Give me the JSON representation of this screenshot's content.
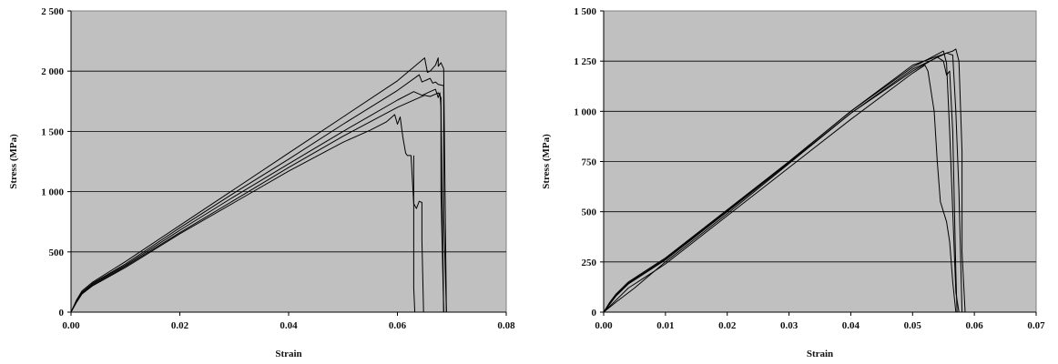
{
  "chart_data": [
    {
      "type": "line",
      "xlabel": "Strain",
      "ylabel": "Stress (MPa)",
      "xlim": [
        0,
        0.08
      ],
      "ylim": [
        0,
        2500
      ],
      "xticks": [
        0,
        0.02,
        0.04,
        0.06,
        0.08
      ],
      "xtick_labels": [
        "0.00",
        "0.02",
        "0.04",
        "0.06",
        "0.08"
      ],
      "yticks": [
        0,
        500,
        1000,
        1500,
        2000,
        2500
      ],
      "ytick_labels": [
        "0",
        "500",
        "1 000",
        "1 500",
        "2 000",
        "2 500"
      ],
      "grid": "horizontal",
      "plot_background": "#c0c0c0",
      "line_color": "#000000",
      "series": [
        {
          "x": [
            0,
            0.001,
            0.002,
            0.004,
            0.01,
            0.02,
            0.03,
            0.04,
            0.05,
            0.06,
            0.065,
            0.0655,
            0.066,
            0.067,
            0.0675,
            0.0675,
            0.068,
            0.0685,
            0.069
          ],
          "y": [
            0,
            100,
            175,
            250,
            420,
            720,
            1020,
            1320,
            1620,
            1920,
            2110,
            1990,
            2000,
            2050,
            2110,
            2040,
            2070,
            2020,
            0
          ]
        },
        {
          "x": [
            0,
            0.001,
            0.002,
            0.004,
            0.01,
            0.02,
            0.03,
            0.04,
            0.05,
            0.06,
            0.064,
            0.0645,
            0.065,
            0.0655,
            0.066,
            0.0665,
            0.067,
            0.0675,
            0.0685,
            0.0685,
            0.069
          ],
          "y": [
            0,
            95,
            165,
            240,
            400,
            700,
            990,
            1270,
            1560,
            1840,
            1970,
            1910,
            1920,
            1930,
            1940,
            1900,
            1910,
            1890,
            1880,
            800,
            0
          ]
        },
        {
          "x": [
            0,
            0.001,
            0.002,
            0.004,
            0.01,
            0.02,
            0.03,
            0.04,
            0.05,
            0.06,
            0.063,
            0.0645,
            0.065,
            0.066,
            0.067,
            0.0675,
            0.0678,
            0.068,
            0.0685
          ],
          "y": [
            0,
            90,
            160,
            235,
            390,
            680,
            960,
            1230,
            1500,
            1760,
            1830,
            1800,
            1810,
            1830,
            1850,
            1780,
            1820,
            1700,
            0
          ]
        },
        {
          "x": [
            0,
            0.001,
            0.002,
            0.004,
            0.01,
            0.02,
            0.03,
            0.04,
            0.05,
            0.06,
            0.065,
            0.066,
            0.067,
            0.0675,
            0.068,
            0.068,
            0.0685
          ],
          "y": [
            0,
            85,
            155,
            225,
            380,
            660,
            930,
            1200,
            1460,
            1700,
            1800,
            1790,
            1810,
            1820,
            1780,
            1000,
            0
          ]
        },
        {
          "x": [
            0,
            0.001,
            0.002,
            0.004,
            0.01,
            0.02,
            0.03,
            0.04,
            0.05,
            0.055,
            0.058,
            0.0595,
            0.06,
            0.0605,
            0.061,
            0.0615,
            0.0618,
            0.0625,
            0.063,
            0.0635,
            0.064,
            0.0645,
            0.0645,
            0.0648
          ],
          "y": [
            0,
            80,
            150,
            220,
            370,
            650,
            910,
            1170,
            1410,
            1510,
            1580,
            1640,
            1560,
            1620,
            1450,
            1320,
            1300,
            1300,
            900,
            860,
            920,
            910,
            600,
            0
          ]
        },
        {
          "x": [
            0.063,
            0.063,
            0.0632
          ],
          "y": [
            1300,
            200,
            0
          ]
        }
      ]
    },
    {
      "type": "line",
      "xlabel": "Strain",
      "ylabel": "Stress (MPa)",
      "xlim": [
        0,
        0.07
      ],
      "ylim": [
        0,
        1500
      ],
      "xticks": [
        0,
        0.01,
        0.02,
        0.03,
        0.04,
        0.05,
        0.06,
        0.07
      ],
      "xtick_labels": [
        "0.00",
        "0.01",
        "0.02",
        "0.03",
        "0.04",
        "0.05",
        "0.06",
        "0.07"
      ],
      "yticks": [
        0,
        250,
        500,
        750,
        1000,
        1250,
        1500
      ],
      "ytick_labels": [
        "0",
        "250",
        "500",
        "750",
        "1 000",
        "1 250",
        "1 500"
      ],
      "grid": "horizontal",
      "plot_background": "#c0c0c0",
      "line_color": "#000000",
      "series": [
        {
          "x": [
            0,
            0.001,
            0.002,
            0.004,
            0.008,
            0.01,
            0.02,
            0.03,
            0.04,
            0.05,
            0.055,
            0.0555,
            0.056,
            0.0565,
            0.057,
            0.0575
          ],
          "y": [
            0,
            50,
            90,
            150,
            230,
            270,
            510,
            750,
            1000,
            1220,
            1300,
            1240,
            900,
            500,
            100,
            0
          ]
        },
        {
          "x": [
            0,
            0.001,
            0.002,
            0.004,
            0.008,
            0.01,
            0.02,
            0.03,
            0.04,
            0.05,
            0.0555,
            0.0565,
            0.057,
            0.0575,
            0.058,
            0.058,
            0.0585
          ],
          "y": [
            0,
            45,
            85,
            145,
            225,
            265,
            505,
            750,
            1000,
            1230,
            1290,
            1300,
            1310,
            1250,
            800,
            300,
            0
          ]
        },
        {
          "x": [
            0,
            0.001,
            0.002,
            0.004,
            0.008,
            0.01,
            0.02,
            0.03,
            0.04,
            0.05,
            0.054,
            0.055,
            0.0555,
            0.056,
            0.0565,
            0.057,
            0.0572
          ],
          "y": [
            0,
            40,
            80,
            140,
            220,
            260,
            500,
            745,
            990,
            1200,
            1270,
            1250,
            1180,
            1200,
            900,
            200,
            0
          ]
        },
        {
          "x": [
            0,
            0.002,
            0.004,
            0.008,
            0.01,
            0.02,
            0.03,
            0.04,
            0.05,
            0.052,
            0.0525,
            0.053,
            0.0535,
            0.054,
            0.0545,
            0.055,
            0.0555,
            0.056,
            0.0565,
            0.057
          ],
          "y": [
            0,
            60,
            120,
            200,
            240,
            480,
            720,
            960,
            1190,
            1230,
            1200,
            1100,
            1000,
            750,
            550,
            500,
            450,
            350,
            150,
            0
          ]
        },
        {
          "x": [
            0,
            0.002,
            0.005,
            0.01,
            0.02,
            0.03,
            0.04,
            0.05,
            0.0555,
            0.0565,
            0.057,
            0.0575,
            0.058
          ],
          "y": [
            0,
            50,
            120,
            250,
            490,
            740,
            990,
            1210,
            1290,
            1280,
            1000,
            600,
            0
          ]
        }
      ]
    }
  ]
}
